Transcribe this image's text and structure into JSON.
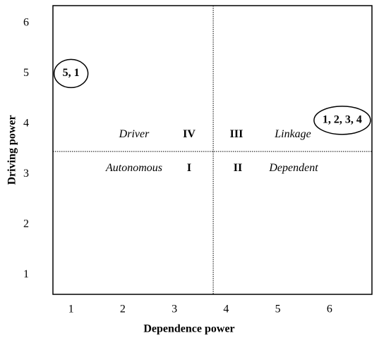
{
  "chart_data": {
    "type": "scatter",
    "xlabel": "Dependence power",
    "ylabel": "Driving power",
    "x": [
      1,
      6
    ],
    "y": [
      5,
      4
    ],
    "point_labels": [
      "5, 1",
      "1, 2, 3, 4"
    ],
    "xlim": [
      0.65,
      6.82
    ],
    "ylim": [
      0.61,
      6.35
    ],
    "xticks": [
      1,
      2,
      3,
      4,
      5,
      6
    ],
    "yticks": [
      1,
      2,
      3,
      4,
      5,
      6
    ],
    "dividers": {
      "x": 3.75,
      "y": 3.45
    },
    "quadrants": [
      {
        "name": "Driver",
        "numeral": "IV"
      },
      {
        "name": "Linkage",
        "numeral": "III"
      },
      {
        "name": "Autonomous",
        "numeral": "I"
      },
      {
        "name": "Dependent",
        "numeral": "II"
      }
    ]
  }
}
